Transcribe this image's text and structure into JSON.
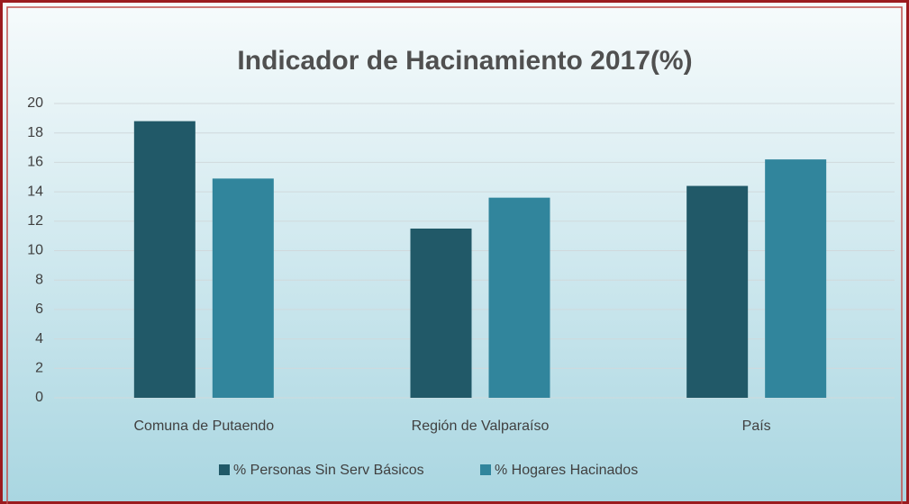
{
  "chart_data": {
    "type": "bar",
    "title": "Indicador de Hacinamiento 2017(%)",
    "categories": [
      "Comuna de Putaendo",
      "Región de Valparaíso",
      "País"
    ],
    "series": [
      {
        "name": "% Personas Sin Serv Básicos",
        "color": "#215968",
        "values": [
          18.8,
          11.5,
          14.4
        ]
      },
      {
        "name": "% Hogares Hacinados",
        "color": "#31859c",
        "values": [
          14.9,
          13.6,
          16.2
        ]
      }
    ],
    "ylim": [
      0,
      20
    ],
    "yticks": [
      0,
      2,
      4,
      6,
      8,
      10,
      12,
      14,
      16,
      18,
      20
    ],
    "grid": true,
    "legend": "bottom"
  }
}
